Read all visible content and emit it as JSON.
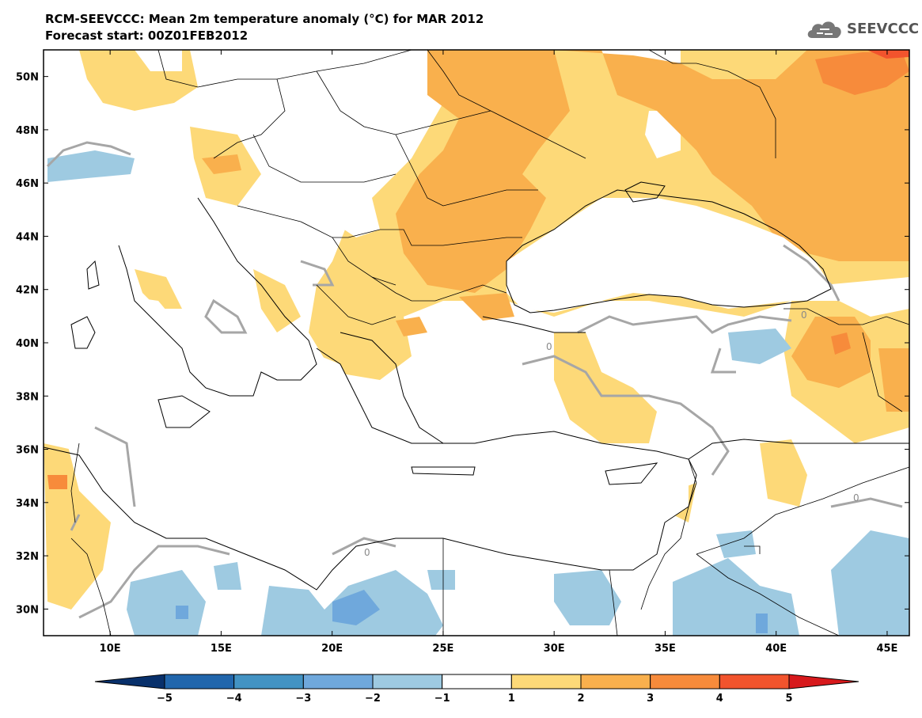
{
  "header": {
    "title": "RCM-SEEVCCC: Mean 2m temperature anomaly (°C) for MAR 2012",
    "subtitle": "Forecast start: 00Z01FEB2012"
  },
  "logo": {
    "text": "SEEVCCC",
    "icon": "cloud-icon"
  },
  "map": {
    "lon_range": [
      7,
      46
    ],
    "lat_range": [
      29,
      51
    ],
    "lon_ticks": [
      "10E",
      "15E",
      "20E",
      "25E",
      "30E",
      "35E",
      "40E",
      "45E"
    ],
    "lat_ticks": [
      "50N",
      "48N",
      "46N",
      "44N",
      "42N",
      "40N",
      "38N",
      "36N",
      "34N",
      "32N",
      "30N"
    ],
    "zero_contour_label": "0"
  },
  "colorbar": {
    "labels": [
      "−5",
      "−4",
      "−3",
      "−2",
      "−1",
      "1",
      "2",
      "3",
      "4",
      "5"
    ],
    "colors": [
      "#08306b",
      "#2166ac",
      "#4393c3",
      "#6fa8dc",
      "#9ecae1",
      "#ffffff",
      "#fdd978",
      "#f9b04d",
      "#f78b3b",
      "#f2542d",
      "#d7191c"
    ]
  }
}
